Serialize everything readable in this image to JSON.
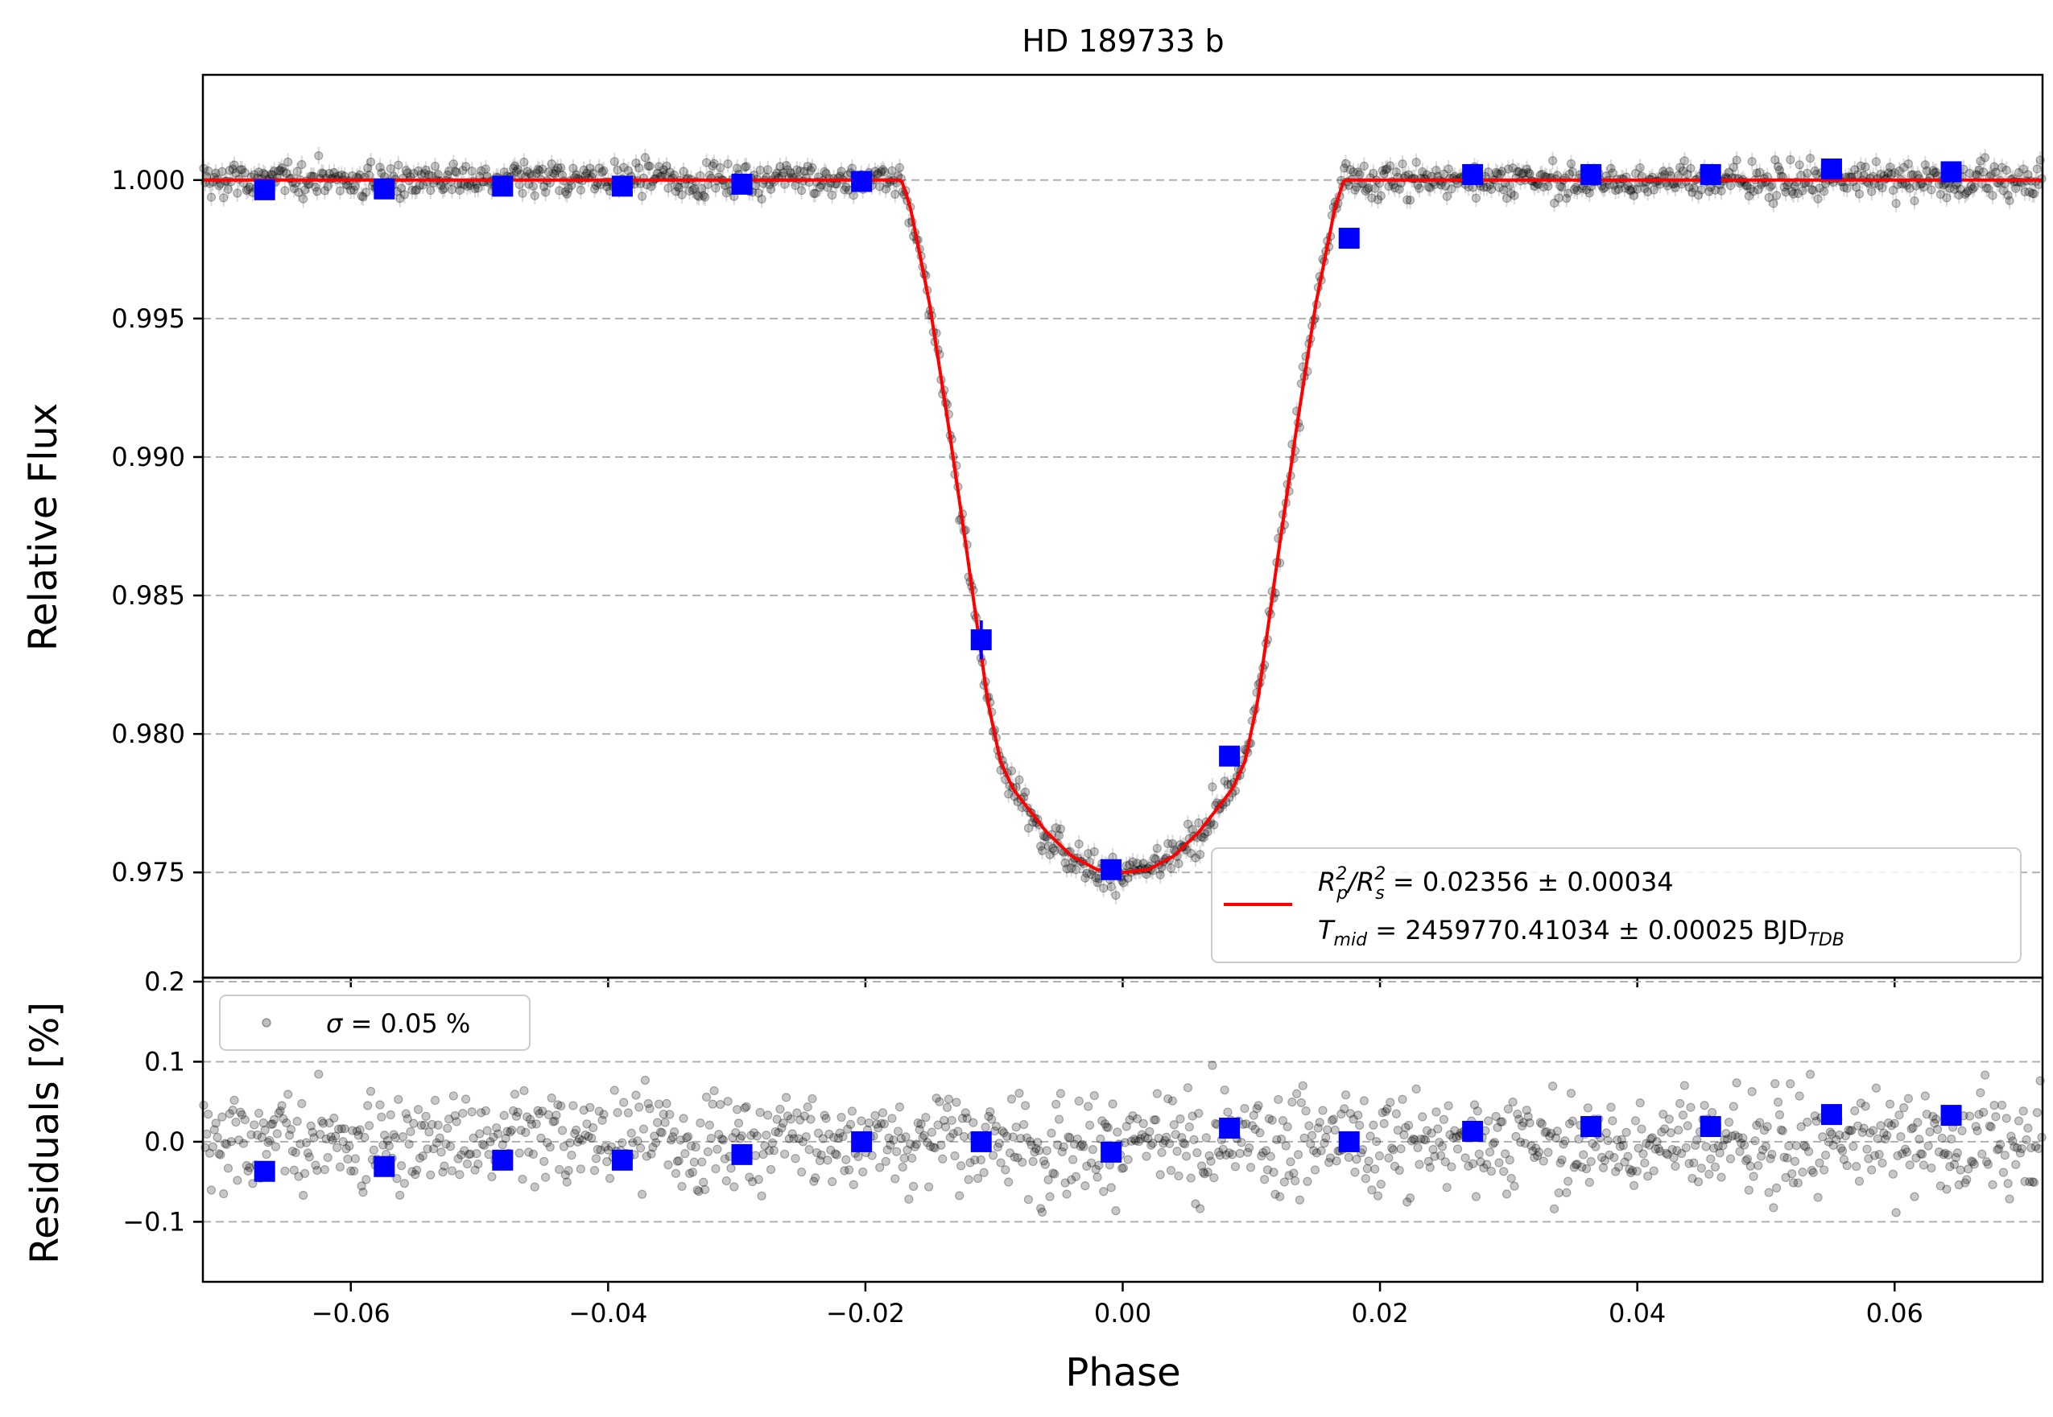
{
  "chart_data": [
    {
      "panel": "transit",
      "type": "scatter",
      "title": "HD 189733 b",
      "xlabel": "",
      "ylabel": "Relative Flux",
      "xlim": [
        -0.0715,
        0.0715
      ],
      "ylim": [
        0.9712,
        1.0038
      ],
      "grid": "horizontal dashed",
      "yticks": [
        "0.975",
        "0.980",
        "0.985",
        "0.990",
        "0.995",
        "1.000"
      ],
      "colors": {
        "data": "#000000",
        "binned": "#0000ff",
        "model": "#ff0000",
        "grid": "#b0b0b0"
      },
      "model": {
        "name": "transit model",
        "x": [
          -0.0715,
          -0.0172,
          -0.0165,
          -0.015,
          -0.0135,
          -0.012,
          -0.0105,
          -0.0095,
          -0.0085,
          -0.006,
          -0.004,
          -0.002,
          0.0,
          0.002,
          0.004,
          0.006,
          0.0085,
          0.0095,
          0.0105,
          0.012,
          0.0135,
          0.015,
          0.0165,
          0.0172,
          0.0715
        ],
        "y": [
          1.0,
          1.0,
          0.999,
          0.9955,
          0.991,
          0.9862,
          0.9812,
          0.979,
          0.978,
          0.9765,
          0.9756,
          0.9751,
          0.975,
          0.9751,
          0.9756,
          0.9765,
          0.978,
          0.979,
          0.9812,
          0.9862,
          0.991,
          0.9955,
          0.999,
          1.0,
          1.0
        ]
      },
      "binned": {
        "name": "binned",
        "x": [
          -0.0667,
          -0.0574,
          -0.0482,
          -0.0389,
          -0.0296,
          -0.0203,
          -0.011,
          -0.0009,
          0.0083,
          0.0176,
          0.0272,
          0.0364,
          0.0457,
          0.0551,
          0.0644
        ],
        "y": [
          0.99965,
          0.99968,
          0.99978,
          0.99978,
          0.99985,
          0.99995,
          0.9834,
          0.9751,
          0.9792,
          0.9979,
          1.0002,
          1.0002,
          1.0002,
          1.0004,
          1.0003
        ],
        "yerr": [
          5e-05,
          5e-05,
          5e-05,
          5e-05,
          5e-05,
          5e-05,
          0.0007,
          0.0003,
          0.0002,
          5e-05,
          5e-05,
          5e-05,
          5e-05,
          5e-05,
          5e-05
        ]
      },
      "legend": {
        "placement": "lower-right",
        "line1_a": "R",
        "line1_sub1": "p",
        "line1_sup1": "2",
        "line1_slash": "/R",
        "line1_sub2": "s",
        "line1_sup2": "2",
        "line1_rest": " = 0.02356 ± 0.00034",
        "line2_a": "T",
        "line2_sub": "mid",
        "line2_rest": " = 2459770.41034 ± 0.00025 BJD",
        "line2_sub2": "TDB"
      }
    },
    {
      "panel": "residuals",
      "type": "scatter",
      "title": "",
      "xlabel": "Phase",
      "ylabel": "Residuals [%]",
      "xlim": [
        -0.0715,
        0.0715
      ],
      "ylim": [
        -0.175,
        0.205
      ],
      "grid": "horizontal dashed",
      "xticks": [
        "−0.06",
        "−0.04",
        "−0.02",
        "0.00",
        "0.02",
        "0.04",
        "0.06"
      ],
      "yticks": [
        "−0.1",
        "0.0",
        "0.1",
        "0.2"
      ],
      "binned": {
        "name": "binned residuals",
        "x": [
          -0.0667,
          -0.0574,
          -0.0482,
          -0.0389,
          -0.0296,
          -0.0203,
          -0.011,
          -0.0009,
          0.0083,
          0.0176,
          0.0272,
          0.0364,
          0.0457,
          0.0551,
          0.0644
        ],
        "y": [
          -0.037,
          -0.031,
          -0.023,
          -0.023,
          -0.016,
          0.0,
          0.0,
          -0.013,
          0.017,
          0.0,
          0.013,
          0.019,
          0.019,
          0.034,
          0.033
        ]
      },
      "legend": {
        "placement": "upper-left",
        "sigma_symbol": "σ",
        "text": " = 0.05 %"
      }
    }
  ]
}
